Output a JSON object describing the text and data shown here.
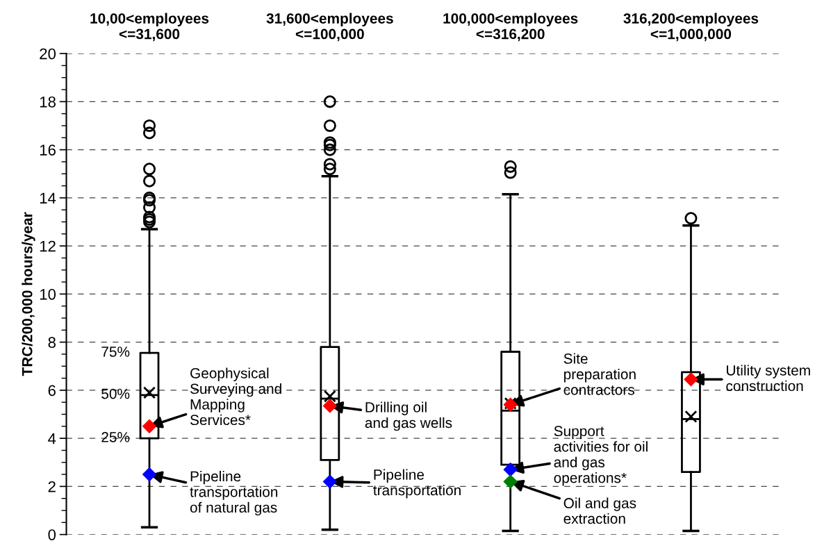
{
  "chart_data": {
    "type": "box",
    "categories": [
      "10,00<employees\n<=31,600",
      "31,600<employees\n<=100,000",
      "100,000<employees\n<=316,200",
      "316,200<employees\n<=1,000,000"
    ],
    "ylabel": "TRC/200,000 hours/year",
    "ylim": [
      0,
      20
    ],
    "yticks": [
      0,
      2,
      4,
      6,
      8,
      10,
      12,
      14,
      16,
      18,
      20
    ],
    "grid": "y",
    "legend": false,
    "boxes": [
      {
        "low": 0.3,
        "q1": 4.0,
        "median": 5.8,
        "q3": 7.55,
        "high": 12.7,
        "mean": 5.9,
        "outliers": [
          17.0,
          16.7,
          15.2,
          14.7,
          14.0,
          13.9,
          13.6,
          13.2,
          13.1,
          13.0
        ]
      },
      {
        "low": 0.2,
        "q1": 3.1,
        "median": 5.65,
        "q3": 7.8,
        "high": 14.9,
        "mean": 5.75,
        "outliers": [
          18.0,
          17.0,
          16.3,
          16.2,
          16.0,
          15.4,
          15.2
        ]
      },
      {
        "low": 0.15,
        "q1": 2.9,
        "median": 5.15,
        "q3": 7.6,
        "high": 14.15,
        "mean": 5.45,
        "outliers": [
          15.3,
          15.05
        ]
      },
      {
        "low": 0.15,
        "q1": 2.6,
        "median": 4.8,
        "q3": 6.75,
        "high": 12.85,
        "mean": 4.9,
        "outliers": [
          13.15
        ]
      }
    ],
    "series": [
      {
        "type": "scatter",
        "marker": "diamond",
        "color": "#ff0000",
        "x": [
          "10,00<employees\n<=31,600",
          "31,600<employees\n<=100,000",
          "100,000<employees\n<=316,200",
          "316,200<employees\n<=1,000,000"
        ],
        "values": [
          4.5,
          5.35,
          5.4,
          6.45
        ]
      },
      {
        "type": "scatter",
        "marker": "diamond",
        "color": "#0000ff",
        "x": [
          "10,00<employees\n<=31,600",
          "31,600<employees\n<=100,000",
          "100,000<employees\n<=316,200"
        ],
        "values": [
          2.5,
          2.2,
          2.7
        ]
      },
      {
        "type": "scatter",
        "marker": "diamond",
        "color": "#008000",
        "x": [
          "100,000<employees\n<=316,200"
        ],
        "values": [
          2.2
        ]
      }
    ],
    "annotations": [
      {
        "text": "75%",
        "x": "10,00<employees\n<=31,600",
        "y": 7.55
      },
      {
        "text": "50%",
        "x": "10,00<employees\n<=31,600",
        "y": 5.8
      },
      {
        "text": "25%",
        "x": "10,00<employees\n<=31,600",
        "y": 4.0
      },
      {
        "text": "Geophysical\nSurveying and\nMapping\nServices*",
        "x": "10,00<employees\n<=31,600",
        "y": 4.5
      },
      {
        "text": "Pipeline\ntransportation\nof natural gas",
        "x": "10,00<employees\n<=31,600",
        "y": 2.5
      },
      {
        "text": "Drilling oil\nand gas wells",
        "x": "31,600<employees\n<=100,000",
        "y": 5.35
      },
      {
        "text": "Pipeline\ntransportation",
        "x": "31,600<employees\n<=100,000",
        "y": 2.2
      },
      {
        "text": "Site\npreparation\ncontractors",
        "x": "100,000<employees\n<=316,200",
        "y": 5.4
      },
      {
        "text": "Support\nactivities for oil\nand gas\noperations*",
        "x": "100,000<employees\n<=316,200",
        "y": 2.7
      },
      {
        "text": "Oil and gas\nextraction",
        "x": "100,000<employees\n<=316,200",
        "y": 2.2
      },
      {
        "text": "Utility system\nconstruction",
        "x": "316,200<employees\n<=1,000,000",
        "y": 6.45
      }
    ]
  }
}
